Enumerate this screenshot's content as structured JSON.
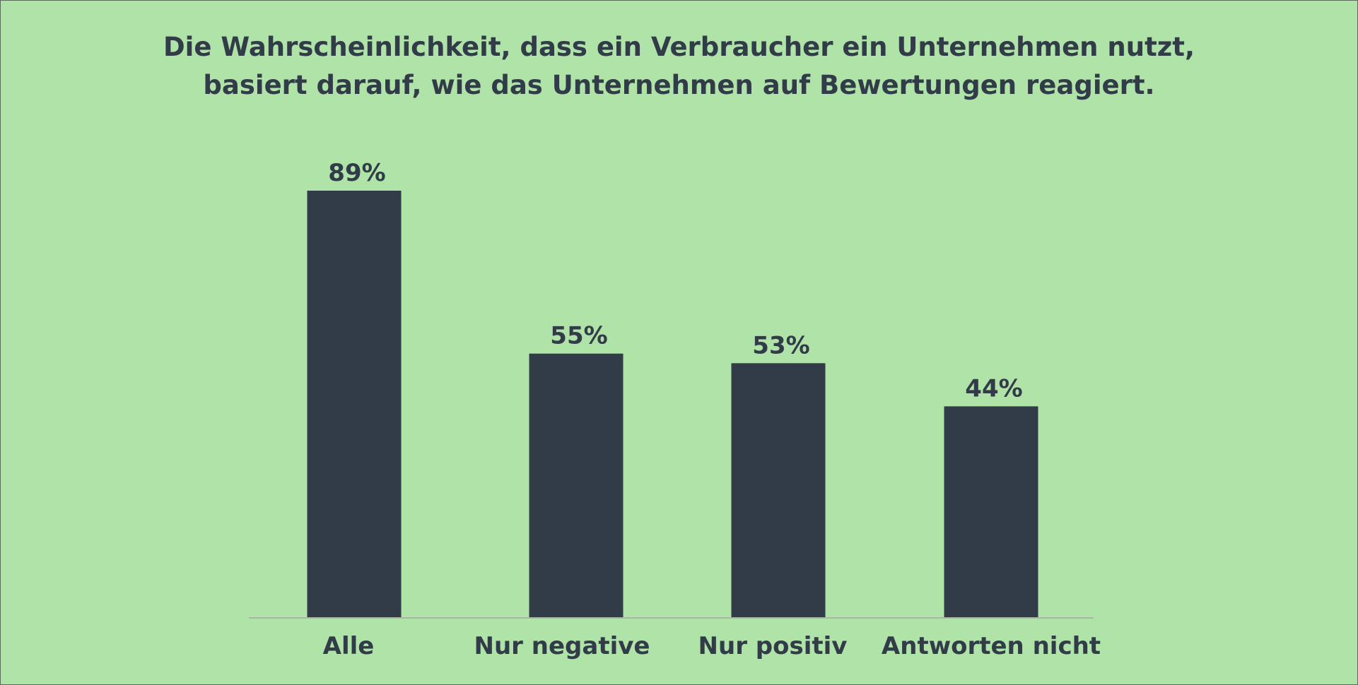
{
  "colors": {
    "background": "#afe3a8",
    "bar": "#323c48",
    "text": "#323c48",
    "axis": "#a9b6a6"
  },
  "chart_data": {
    "type": "bar",
    "title_lines": [
      "Die Wahrscheinlichkeit, dass ein Verbraucher ein Unternehmen nutzt,",
      "basiert darauf, wie das Unternehmen auf Bewertungen reagiert."
    ],
    "categories": [
      "Alle",
      "Nur negative",
      "Nur positiv",
      "Antworten nicht"
    ],
    "values": [
      89,
      55,
      53,
      44
    ],
    "data_labels": [
      "89%",
      "55%",
      "53%",
      "44%"
    ],
    "unit": "%",
    "ylim": [
      0,
      100
    ],
    "grid": false,
    "legend": "none"
  }
}
